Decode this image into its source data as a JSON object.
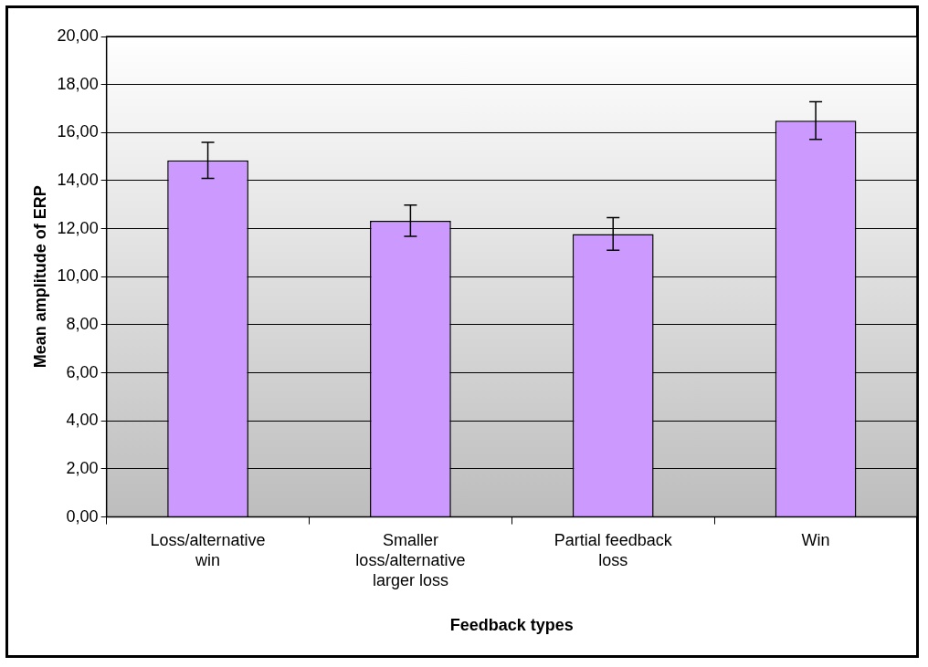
{
  "chart_data": {
    "type": "bar",
    "xlabel": "Feedback types",
    "ylabel": "Mean amplitude of ERP",
    "categories": [
      "Loss/alternative win",
      "Smaller loss/alternative larger loss",
      "Partial feedback loss",
      "Win"
    ],
    "values": [
      14.84,
      12.33,
      11.78,
      16.5
    ],
    "errors": [
      0.75,
      0.65,
      0.68,
      0.78
    ],
    "color": "#cc99ff",
    "ylim": [
      0,
      20
    ],
    "yticks": [
      {
        "value": 0,
        "label": "0,00"
      },
      {
        "value": 2,
        "label": "2,00"
      },
      {
        "value": 4,
        "label": "4,00"
      },
      {
        "value": 6,
        "label": "6,00"
      },
      {
        "value": 8,
        "label": "8,00"
      },
      {
        "value": 10,
        "label": "10,00"
      },
      {
        "value": 12,
        "label": "12,00"
      },
      {
        "value": 14,
        "label": "14,00"
      },
      {
        "value": 16,
        "label": "16,00"
      },
      {
        "value": 18,
        "label": "18,00"
      },
      {
        "value": 20,
        "label": "20,00"
      }
    ],
    "grid": "y",
    "legend": false
  }
}
